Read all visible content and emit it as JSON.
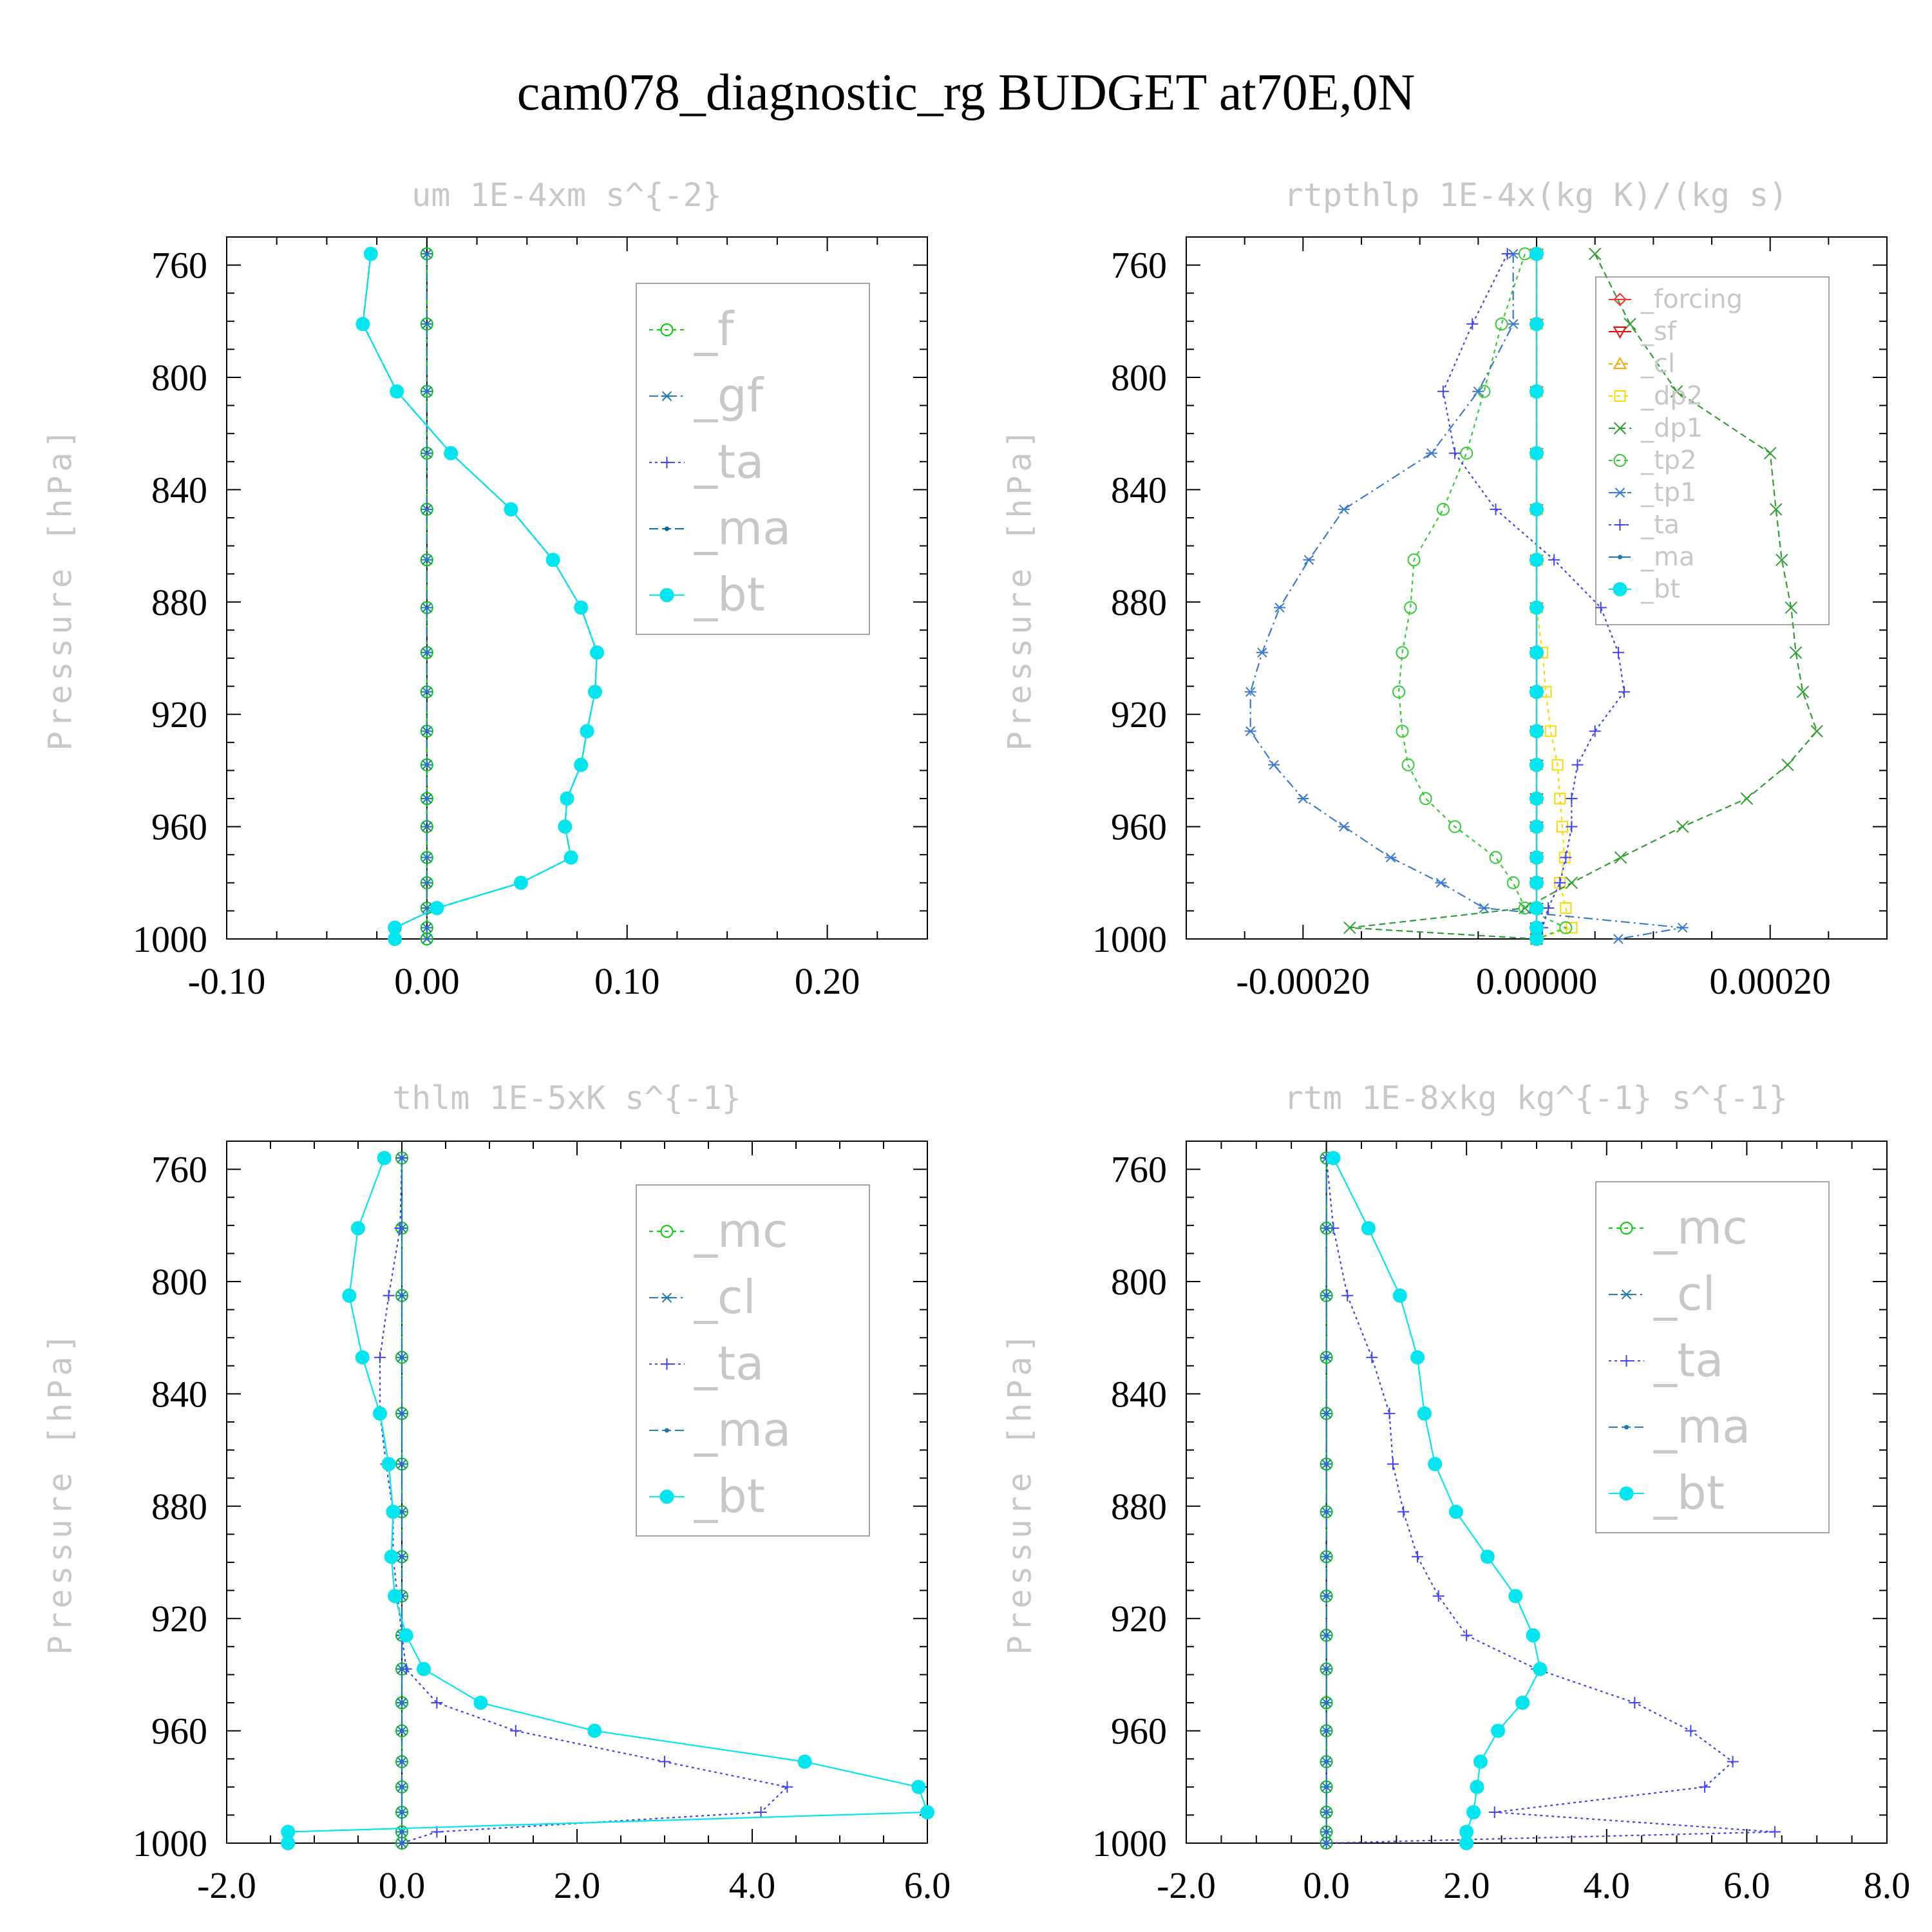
{
  "title": "cam078_diagnostic_rg  BUDGET at70E,0N",
  "chart_data": [
    {
      "type": "line",
      "title": "um   1E-4xm s^{-2}",
      "ylabel": "Pressure [hPa]",
      "xlim": [
        -0.1,
        0.25
      ],
      "ylim": [
        750,
        1000
      ],
      "xticks": [
        -0.1,
        0.0,
        0.1,
        0.2
      ],
      "xtick_labels": [
        "-0.10",
        "0.00",
        "0.10",
        "0.20"
      ],
      "yticks": [
        760,
        800,
        840,
        880,
        920,
        960,
        1000
      ],
      "ytick_labels": [
        "760",
        "800",
        "840",
        "880",
        "920",
        "960",
        "1000"
      ],
      "legend": "top-right",
      "y": [
        756,
        781,
        805,
        827,
        847,
        865,
        882,
        898,
        912,
        926,
        938,
        950,
        960,
        971,
        980,
        989,
        996,
        1000
      ],
      "series": [
        {
          "name": "_f",
          "color": "#00cc00",
          "dash": "6 6",
          "marker": "circle-open",
          "values": [
            0,
            0,
            0,
            0,
            0,
            0,
            0,
            0,
            0,
            0,
            0,
            0,
            0,
            0,
            0,
            0,
            0,
            0
          ]
        },
        {
          "name": "_gf",
          "color": "#1f77b4",
          "dash": "14 6 3 6",
          "marker": "star",
          "values": [
            0,
            0,
            0,
            0,
            0,
            0,
            0,
            0,
            0,
            0,
            0,
            0,
            0,
            0,
            0,
            0,
            0,
            0
          ]
        },
        {
          "name": "_ta",
          "color": "#4040ff",
          "dash": "4 5",
          "marker": "plus",
          "values": [
            -0.028,
            -0.032,
            -0.015,
            0.012,
            0.042,
            0.063,
            0.077,
            0.085,
            0.084,
            0.08,
            0.077,
            0.07,
            0.069,
            0.072,
            0.047,
            0.005,
            -0.016,
            -0.016
          ]
        },
        {
          "name": "_ma",
          "color": "#0066aa",
          "dash": "14 6",
          "marker": "dot",
          "values": [
            -0.028,
            -0.032,
            -0.015,
            0.012,
            0.042,
            0.063,
            0.077,
            0.085,
            0.084,
            0.08,
            0.077,
            0.07,
            0.069,
            0.072,
            0.047,
            0.005,
            -0.016,
            -0.016
          ]
        },
        {
          "name": "_bt",
          "color": "#00e5ee",
          "dash": "",
          "marker": "filled-circle",
          "values": [
            -0.028,
            -0.032,
            -0.015,
            0.012,
            0.042,
            0.063,
            0.077,
            0.085,
            0.084,
            0.08,
            0.077,
            0.07,
            0.069,
            0.072,
            0.047,
            0.005,
            -0.016,
            -0.016
          ]
        }
      ]
    },
    {
      "type": "line",
      "title": "rtpthlp   1E-4x(kg K)/(kg s)",
      "ylabel": "Pressure [hPa]",
      "xlim": [
        -0.0003,
        0.0003
      ],
      "ylim": [
        750,
        1000
      ],
      "xticks": [
        -0.0002,
        0.0,
        0.0002
      ],
      "xtick_labels": [
        "-0.00020",
        "0.00000",
        "0.00020"
      ],
      "yticks": [
        760,
        800,
        840,
        880,
        920,
        960,
        1000
      ],
      "ytick_labels": [
        "760",
        "800",
        "840",
        "880",
        "920",
        "960",
        "1000"
      ],
      "legend": "top-right",
      "y": [
        756,
        781,
        805,
        827,
        847,
        865,
        882,
        898,
        912,
        926,
        938,
        950,
        960,
        971,
        980,
        989,
        996,
        1000
      ],
      "series": [
        {
          "name": "_forcing",
          "color": "#ff3030",
          "dash": "",
          "marker": "diamond",
          "values": [
            0,
            0,
            0,
            0,
            0,
            0,
            0,
            0,
            0,
            0,
            0,
            0,
            0,
            0,
            0,
            0,
            0,
            0
          ]
        },
        {
          "name": "_sf",
          "color": "#ff0000",
          "dash": "",
          "marker": "triangle-down",
          "values": [
            0,
            0,
            0,
            0,
            0,
            0,
            0,
            0,
            0,
            0,
            0,
            0,
            0,
            0,
            0,
            0,
            0,
            0
          ]
        },
        {
          "name": "_cl",
          "color": "#ffa500",
          "dash": "6 6",
          "marker": "triangle-up",
          "values": [
            0,
            0,
            0,
            0,
            0,
            0,
            0,
            0,
            0,
            0,
            0,
            0,
            0,
            0,
            0,
            0,
            0,
            0
          ]
        },
        {
          "name": "_dp2",
          "color": "#ffd700",
          "dash": "6 6",
          "marker": "square",
          "values": [
            0,
            0,
            0,
            0,
            0,
            0,
            0,
            5e-06,
            8e-06,
            1.2e-05,
            1.8e-05,
            2e-05,
            2.2e-05,
            2.4e-05,
            2e-05,
            2.5e-05,
            3e-05,
            0
          ]
        },
        {
          "name": "_dp1",
          "color": "#2ca02c",
          "dash": "10 6",
          "marker": "x",
          "values": [
            5e-05,
            8e-05,
            0.00012,
            0.0002,
            0.000205,
            0.00021,
            0.000218,
            0.000222,
            0.000228,
            0.00024,
            0.000215,
            0.00018,
            0.000125,
            7.2e-05,
            3e-05,
            -1e-05,
            -0.00016,
            0
          ]
        },
        {
          "name": "_tp2",
          "color": "#33cc33",
          "dash": "6 6",
          "marker": "circle-open",
          "values": [
            -1e-05,
            -3e-05,
            -4.5e-05,
            -6e-05,
            -8e-05,
            -0.000105,
            -0.000108,
            -0.000115,
            -0.000118,
            -0.000115,
            -0.00011,
            -9.5e-05,
            -7e-05,
            -3.5e-05,
            -2e-05,
            -1e-05,
            2.5e-05,
            0
          ]
        },
        {
          "name": "_tp1",
          "color": "#3a7ad4",
          "dash": "14 6 3 6",
          "marker": "star",
          "values": [
            -2e-05,
            -2e-05,
            -5e-05,
            -9e-05,
            -0.000165,
            -0.000195,
            -0.00022,
            -0.000235,
            -0.000245,
            -0.000245,
            -0.000225,
            -0.0002,
            -0.000165,
            -0.000125,
            -8.2e-05,
            -4.5e-05,
            0.000125,
            7e-05
          ]
        },
        {
          "name": "_ta",
          "color": "#4040ff",
          "dash": "4 5",
          "marker": "plus",
          "values": [
            -2.5e-05,
            -5.5e-05,
            -8e-05,
            -7e-05,
            -3.5e-05,
            1.5e-05,
            5.5e-05,
            7e-05,
            7.5e-05,
            5e-05,
            3.5e-05,
            3e-05,
            3e-05,
            2.5e-05,
            2e-05,
            1e-05,
            5e-06,
            0
          ]
        },
        {
          "name": "_ma",
          "color": "#1f77b4",
          "dash": "14 6",
          "marker": "dot",
          "values": [
            0,
            0,
            0,
            0,
            0,
            0,
            0,
            0,
            0,
            0,
            0,
            0,
            0,
            0,
            0,
            0,
            0,
            0
          ]
        },
        {
          "name": "_bt",
          "color": "#00e5ee",
          "dash": "",
          "marker": "filled-circle",
          "values": [
            0,
            0,
            0,
            0,
            0,
            0,
            0,
            0,
            0,
            0,
            0,
            0,
            0,
            0,
            0,
            0,
            0,
            0
          ]
        }
      ]
    },
    {
      "type": "line",
      "title": "thlm   1E-5xK s^{-1}",
      "ylabel": "Pressure [hPa]",
      "xlim": [
        -2.0,
        6.0
      ],
      "ylim": [
        750,
        1000
      ],
      "xticks": [
        -2.0,
        0.0,
        2.0,
        4.0,
        6.0
      ],
      "xtick_labels": [
        "-2.0",
        "0.0",
        "2.0",
        "4.0",
        "6.0"
      ],
      "yticks": [
        760,
        800,
        840,
        880,
        920,
        960,
        1000
      ],
      "ytick_labels": [
        "760",
        "800",
        "840",
        "880",
        "920",
        "960",
        "1000"
      ],
      "legend": "top-right",
      "y": [
        756,
        781,
        805,
        827,
        847,
        865,
        882,
        898,
        912,
        926,
        938,
        950,
        960,
        971,
        980,
        989,
        996,
        1000
      ],
      "series": [
        {
          "name": "_mc",
          "color": "#00cc00",
          "dash": "6 6",
          "marker": "circle-open",
          "values": [
            0,
            0,
            0,
            0,
            0,
            0,
            0,
            0,
            0,
            0,
            0,
            0,
            0,
            0,
            0,
            0,
            0,
            0
          ]
        },
        {
          "name": "_cl",
          "color": "#1f77b4",
          "dash": "14 6 3 6",
          "marker": "star",
          "values": [
            0,
            0,
            0,
            0,
            0,
            0,
            0,
            0,
            0,
            0,
            0,
            0,
            0,
            0,
            0,
            0,
            0,
            0
          ]
        },
        {
          "name": "_ta",
          "color": "#4040ff",
          "dash": "4 5",
          "marker": "plus",
          "values": [
            0,
            -0.02,
            -0.15,
            -0.25,
            -0.25,
            -0.18,
            -0.1,
            -0.1,
            -0.05,
            0,
            0.05,
            0.4,
            1.3,
            3.0,
            4.4,
            4.1,
            0.4,
            0
          ]
        },
        {
          "name": "_ma",
          "color": "#1f77b4",
          "dash": "14 6",
          "marker": "dot",
          "values": [
            0,
            0,
            0,
            0,
            0,
            0,
            0,
            0,
            0,
            0,
            0,
            0,
            0,
            0,
            0,
            0,
            0,
            0
          ]
        },
        {
          "name": "_bt",
          "color": "#00e5ee",
          "dash": "",
          "marker": "filled-circle",
          "values": [
            -0.2,
            -0.5,
            -0.6,
            -0.45,
            -0.25,
            -0.15,
            -0.1,
            -0.12,
            -0.08,
            0.05,
            0.25,
            0.9,
            2.2,
            4.6,
            5.9,
            6.0,
            -1.3,
            -1.3
          ]
        }
      ]
    },
    {
      "type": "line",
      "title": "rtm   1E-8xkg kg^{-1} s^{-1}",
      "ylabel": "Pressure [hPa]",
      "xlim": [
        -2.0,
        8.0
      ],
      "ylim": [
        750,
        1000
      ],
      "xticks": [
        -2.0,
        0.0,
        2.0,
        4.0,
        6.0,
        8.0
      ],
      "xtick_labels": [
        "-2.0",
        "0.0",
        "2.0",
        "4.0",
        "6.0",
        "8.0"
      ],
      "yticks": [
        760,
        800,
        840,
        880,
        920,
        960,
        1000
      ],
      "ytick_labels": [
        "760",
        "800",
        "840",
        "880",
        "920",
        "960",
        "1000"
      ],
      "legend": "top-right",
      "y": [
        756,
        781,
        805,
        827,
        847,
        865,
        882,
        898,
        912,
        926,
        938,
        950,
        960,
        971,
        980,
        989,
        996,
        1000
      ],
      "series": [
        {
          "name": "_mc",
          "color": "#00cc00",
          "dash": "6 6",
          "marker": "circle-open",
          "values": [
            0,
            0,
            0,
            0,
            0,
            0,
            0,
            0,
            0,
            0,
            0,
            0,
            0,
            0,
            0,
            0,
            0,
            0
          ]
        },
        {
          "name": "_cl",
          "color": "#1f77b4",
          "dash": "14 6 3 6",
          "marker": "star",
          "values": [
            0,
            0,
            0,
            0,
            0,
            0,
            0,
            0,
            0,
            0,
            0,
            0,
            0,
            0,
            0,
            0,
            0,
            0
          ]
        },
        {
          "name": "_ta",
          "color": "#4040ff",
          "dash": "4 5",
          "marker": "plus",
          "values": [
            0,
            0.1,
            0.3,
            0.65,
            0.9,
            0.95,
            1.1,
            1.3,
            1.6,
            2.0,
            3.0,
            4.4,
            5.2,
            5.8,
            5.4,
            2.4,
            6.4,
            0
          ]
        },
        {
          "name": "_ma",
          "color": "#1f77b4",
          "dash": "14 6",
          "marker": "dot",
          "values": [
            0,
            0,
            0,
            0,
            0,
            0,
            0,
            0,
            0,
            0,
            0,
            0,
            0,
            0,
            0,
            0,
            0,
            0
          ]
        },
        {
          "name": "_bt",
          "color": "#00e5ee",
          "dash": "",
          "marker": "filled-circle",
          "values": [
            0.1,
            0.6,
            1.05,
            1.3,
            1.4,
            1.55,
            1.85,
            2.3,
            2.7,
            2.95,
            3.05,
            2.8,
            2.45,
            2.2,
            2.15,
            2.1,
            2.0,
            2.0
          ]
        }
      ]
    }
  ]
}
